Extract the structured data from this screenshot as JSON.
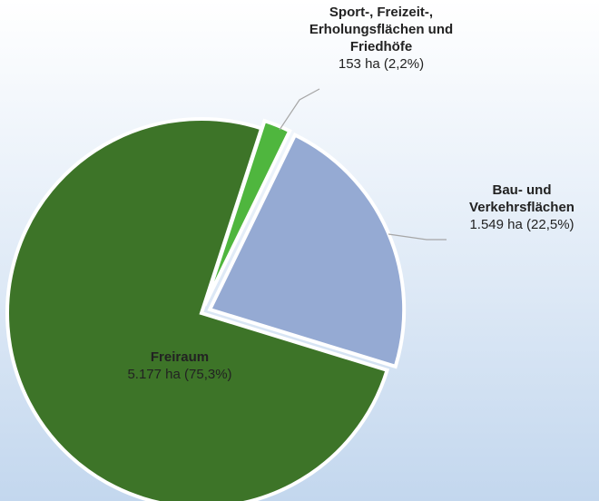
{
  "chart_data": {
    "type": "pie",
    "categories": [
      "Sport-, Freizeit-, Erholungsflächen und Friedhöfe",
      "Bau- und Verkehrsflächen",
      "Freiraum"
    ],
    "values": [
      153,
      1549,
      5177
    ],
    "value_labels": [
      "153 ha (2,2%)",
      "1.549 ha (22,5%)",
      "5.177 ha (75,3%)"
    ],
    "colors": [
      "#4fb63e",
      "#95aad3",
      "#3d7428"
    ]
  }
}
